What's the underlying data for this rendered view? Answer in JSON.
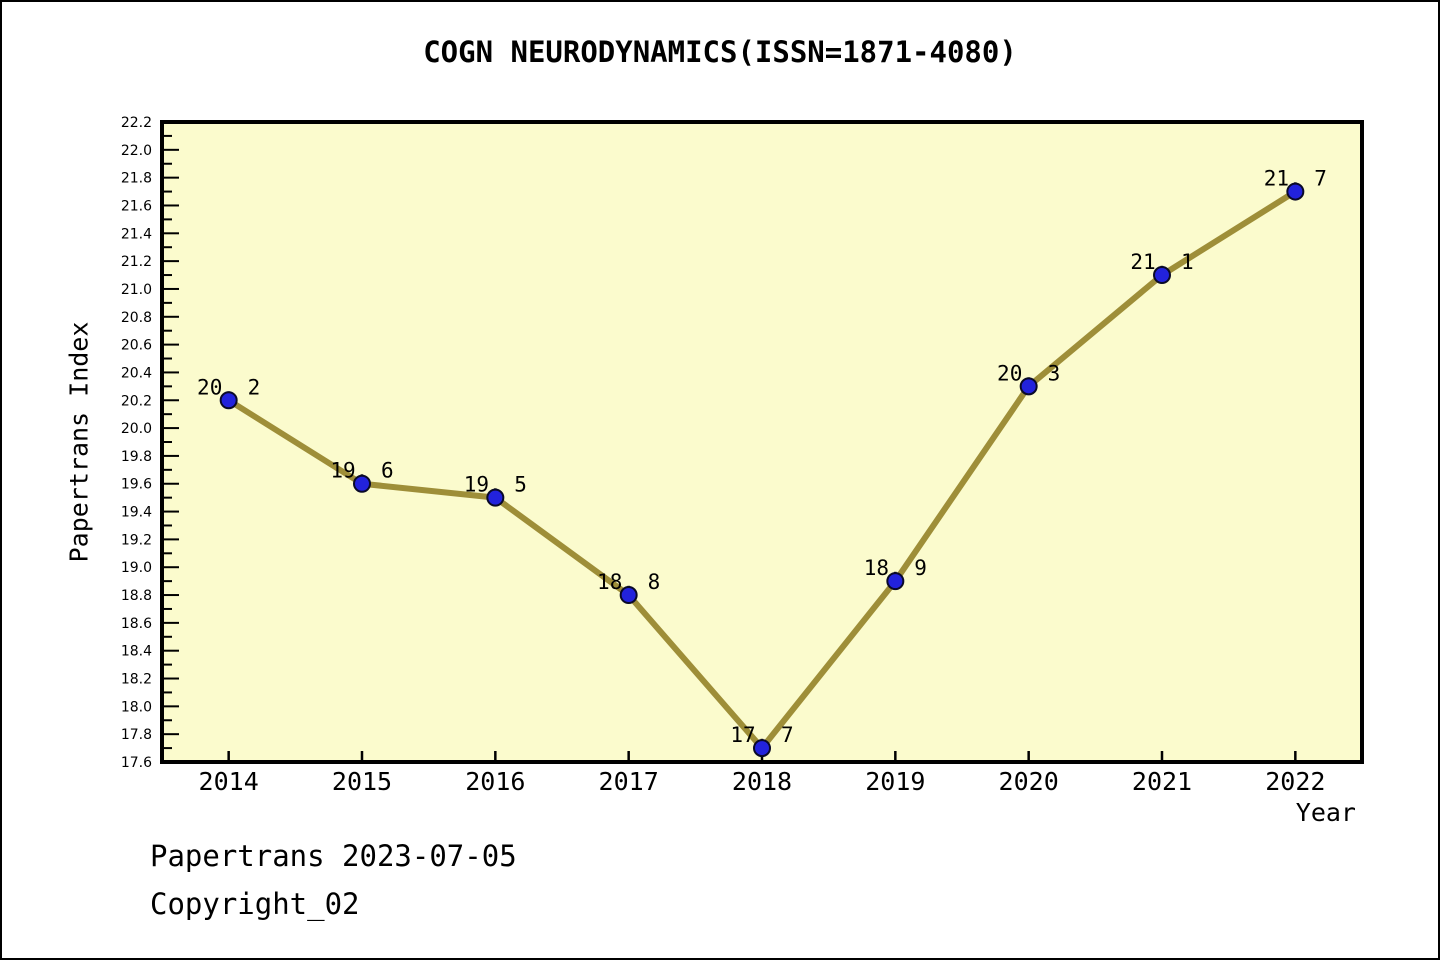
{
  "title": "COGN NEURODYNAMICS(ISSN=1871-4080)",
  "footer": {
    "line1": "Papertrans 2023-07-05",
    "line2": "Copyright_02"
  },
  "chart_data": {
    "type": "line",
    "title": "COGN NEURODYNAMICS(ISSN=1871-4080)",
    "xlabel": "Year",
    "ylabel": "Papertrans Index",
    "x": [
      2014,
      2015,
      2016,
      2017,
      2018,
      2019,
      2020,
      2021,
      2022
    ],
    "values": [
      20.2,
      19.6,
      19.5,
      18.8,
      17.7,
      18.9,
      20.3,
      21.1,
      21.7
    ],
    "point_labels": [
      "20. 2",
      "19. 6",
      "19. 5",
      "18. 8",
      "17. 7",
      "18. 9",
      "20. 3",
      "21. 1",
      "21. 7"
    ],
    "xtick_labels": [
      "2014",
      "2015",
      "2016",
      "2017",
      "2018",
      "2019",
      "2020",
      "2021",
      "2022"
    ],
    "ytick_labels": [
      "17.6",
      "17.8",
      "18.0",
      "18.2",
      "18.4",
      "18.6",
      "18.8",
      "19.0",
      "19.2",
      "19.4",
      "19.6",
      "19.8",
      "20.0",
      "20.2",
      "20.4",
      "20.6",
      "20.8",
      "21.0",
      "21.2",
      "21.4",
      "21.6",
      "21.8",
      "22.0",
      "22.2"
    ],
    "xlim": [
      2013.5,
      2022.5
    ],
    "ylim": [
      17.6,
      22.2
    ],
    "ytick_step": 0.2,
    "ytick_minor_step": 0.1,
    "grid": false,
    "legend": null,
    "marker": "circle",
    "colors": {
      "page_bg": "#FFFFFF",
      "plot_bg": "#FBFBCD",
      "line": "#9E8E38",
      "marker_fill": "#2222DC",
      "marker_edge": "#0A0A28",
      "axis": "#000000",
      "text": "#000000"
    }
  }
}
